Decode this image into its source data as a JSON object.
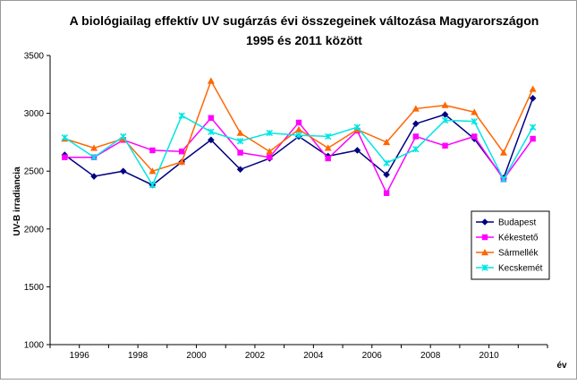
{
  "chart_data": {
    "type": "line",
    "title_line1": "A biológiailag effektív UV sugárzás évi összegeinek változása Magyarországon",
    "title_line2": "1995 és 2011 között",
    "xlabel": "év",
    "ylabel": "UV-B irradiancia",
    "ylim": [
      1000,
      3500
    ],
    "yticks": [
      1000,
      1500,
      2000,
      2500,
      3000,
      3500
    ],
    "xlim": [
      1995,
      2011
    ],
    "xtick_labels": [
      "1996",
      "1998",
      "2000",
      "2002",
      "2004",
      "2006",
      "2008",
      "2010"
    ],
    "x": [
      1995,
      1996,
      1997,
      1998,
      1999,
      2000,
      2001,
      2002,
      2003,
      2004,
      2005,
      2006,
      2007,
      2008,
      2009,
      2010,
      2011
    ],
    "grid": false,
    "legend_position": "right",
    "series": [
      {
        "name": "Budapest",
        "color": "#000080",
        "marker": "diamond",
        "values": [
          2640,
          2455,
          2500,
          2380,
          2580,
          2770,
          2515,
          2610,
          2800,
          2630,
          2680,
          2470,
          2910,
          2990,
          2780,
          2440,
          3130
        ]
      },
      {
        "name": "Kékestető",
        "color": "#ff00ff",
        "marker": "square",
        "values": [
          2620,
          2620,
          2770,
          2680,
          2670,
          2960,
          2660,
          2620,
          2920,
          2610,
          2850,
          2310,
          2800,
          2720,
          2800,
          2430,
          2780
        ]
      },
      {
        "name": "Sármellék",
        "color": "#ff6600",
        "marker": "triangle",
        "values": [
          2780,
          2700,
          2780,
          2500,
          2580,
          3280,
          2830,
          2670,
          2860,
          2700,
          2860,
          2750,
          3040,
          3070,
          3010,
          2660,
          3210
        ]
      },
      {
        "name": "Kecskemét",
        "color": "#00e5e5",
        "marker": "x",
        "values": [
          2790,
          2620,
          2800,
          2380,
          2980,
          2840,
          2760,
          2830,
          2810,
          2800,
          2880,
          2570,
          2690,
          2940,
          2930,
          2430,
          2880
        ]
      }
    ]
  }
}
